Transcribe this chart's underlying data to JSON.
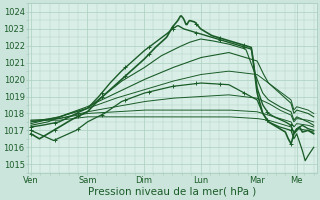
{
  "bg_color": "#cce5dc",
  "plot_bg": "#daeee8",
  "grid_color": "#aacfbf",
  "line_color": "#1a5c28",
  "ylim": [
    1014.5,
    1024.5
  ],
  "yticks": [
    1015,
    1016,
    1017,
    1018,
    1019,
    1020,
    1021,
    1022,
    1023,
    1024
  ],
  "xlabel": "Pression niveau de la mer( hPa )",
  "xlabel_fontsize": 7.5,
  "tick_fontsize": 6.0,
  "xtick_labels": [
    "Ven",
    "Sam",
    "Dim",
    "Lun",
    "Mar",
    "Me"
  ],
  "xtick_positions": [
    0.0,
    1.0,
    2.0,
    3.0,
    4.0,
    4.7
  ],
  "xlim": [
    -0.05,
    5.05
  ],
  "x_end": 5.05,
  "lines": [
    {
      "pts": [
        [
          0,
          1016.8
        ],
        [
          0.15,
          1016.5
        ],
        [
          0.3,
          1016.8
        ],
        [
          0.5,
          1017.2
        ],
        [
          0.7,
          1017.6
        ],
        [
          1.0,
          1018.1
        ],
        [
          1.2,
          1018.8
        ],
        [
          1.4,
          1019.4
        ],
        [
          1.6,
          1020.0
        ],
        [
          1.8,
          1020.6
        ],
        [
          2.0,
          1021.2
        ],
        [
          2.2,
          1021.9
        ],
        [
          2.4,
          1022.5
        ],
        [
          2.5,
          1023.1
        ],
        [
          2.6,
          1023.5
        ],
        [
          2.65,
          1023.8
        ],
        [
          2.7,
          1023.6
        ],
        [
          2.75,
          1023.2
        ],
        [
          2.8,
          1023.5
        ],
        [
          2.9,
          1023.4
        ],
        [
          3.0,
          1023.0
        ],
        [
          3.1,
          1022.8
        ],
        [
          3.2,
          1022.6
        ],
        [
          3.3,
          1022.5
        ],
        [
          3.5,
          1022.3
        ],
        [
          3.7,
          1022.1
        ],
        [
          3.9,
          1021.9
        ],
        [
          4.0,
          1019.2
        ],
        [
          4.1,
          1018.0
        ],
        [
          4.2,
          1017.5
        ],
        [
          4.3,
          1017.3
        ],
        [
          4.4,
          1017.1
        ],
        [
          4.5,
          1016.9
        ],
        [
          4.55,
          1016.5
        ],
        [
          4.6,
          1016.2
        ],
        [
          4.65,
          1016.8
        ],
        [
          4.7,
          1017.0
        ],
        [
          4.75,
          1017.2
        ],
        [
          4.8,
          1016.9
        ],
        [
          4.9,
          1017.0
        ],
        [
          5.0,
          1016.8
        ]
      ],
      "lw": 1.2,
      "marker": true
    },
    {
      "pts": [
        [
          0,
          1017.2
        ],
        [
          0.2,
          1017.3
        ],
        [
          0.5,
          1017.5
        ],
        [
          0.8,
          1018.0
        ],
        [
          1.0,
          1018.3
        ],
        [
          1.2,
          1019.0
        ],
        [
          1.4,
          1019.8
        ],
        [
          1.6,
          1020.5
        ],
        [
          1.8,
          1021.1
        ],
        [
          2.0,
          1021.7
        ],
        [
          2.2,
          1022.2
        ],
        [
          2.4,
          1022.7
        ],
        [
          2.5,
          1023.0
        ],
        [
          2.6,
          1023.2
        ],
        [
          2.7,
          1023.0
        ],
        [
          2.8,
          1022.9
        ],
        [
          3.0,
          1022.7
        ],
        [
          3.2,
          1022.5
        ],
        [
          3.5,
          1022.2
        ],
        [
          3.7,
          1022.0
        ],
        [
          3.9,
          1021.8
        ],
        [
          4.0,
          1019.5
        ],
        [
          4.1,
          1018.5
        ],
        [
          4.2,
          1018.0
        ],
        [
          4.3,
          1017.8
        ],
        [
          4.5,
          1017.5
        ],
        [
          4.6,
          1017.3
        ],
        [
          4.65,
          1016.8
        ],
        [
          4.7,
          1017.1
        ],
        [
          4.8,
          1017.3
        ],
        [
          4.9,
          1017.1
        ],
        [
          5.0,
          1017.0
        ]
      ],
      "lw": 1.0,
      "marker": true
    },
    {
      "pts": [
        [
          0,
          1017.3
        ],
        [
          0.3,
          1017.5
        ],
        [
          0.6,
          1017.9
        ],
        [
          1.0,
          1018.3
        ],
        [
          1.3,
          1019.1
        ],
        [
          1.6,
          1019.9
        ],
        [
          2.0,
          1020.7
        ],
        [
          2.3,
          1021.4
        ],
        [
          2.6,
          1021.9
        ],
        [
          2.8,
          1022.2
        ],
        [
          3.0,
          1022.4
        ],
        [
          3.2,
          1022.3
        ],
        [
          3.5,
          1022.1
        ],
        [
          3.8,
          1021.8
        ],
        [
          4.0,
          1020.0
        ],
        [
          4.1,
          1019.2
        ],
        [
          4.2,
          1018.8
        ],
        [
          4.4,
          1018.4
        ],
        [
          4.6,
          1018.1
        ],
        [
          4.65,
          1017.6
        ],
        [
          4.7,
          1017.8
        ],
        [
          4.9,
          1017.5
        ],
        [
          5.0,
          1017.3
        ]
      ],
      "lw": 0.8,
      "marker": false
    },
    {
      "pts": [
        [
          0,
          1017.4
        ],
        [
          0.5,
          1017.8
        ],
        [
          1.0,
          1018.4
        ],
        [
          1.5,
          1019.2
        ],
        [
          2.0,
          1020.0
        ],
        [
          2.5,
          1020.7
        ],
        [
          3.0,
          1021.3
        ],
        [
          3.5,
          1021.6
        ],
        [
          4.0,
          1021.1
        ],
        [
          4.1,
          1020.4
        ],
        [
          4.2,
          1019.8
        ],
        [
          4.4,
          1019.2
        ],
        [
          4.6,
          1018.6
        ],
        [
          4.65,
          1018.0
        ],
        [
          4.7,
          1018.2
        ],
        [
          4.9,
          1018.0
        ],
        [
          5.0,
          1017.8
        ]
      ],
      "lw": 0.8,
      "marker": false
    },
    {
      "pts": [
        [
          0,
          1017.5
        ],
        [
          0.5,
          1017.8
        ],
        [
          1.0,
          1018.3
        ],
        [
          1.5,
          1018.9
        ],
        [
          2.0,
          1019.4
        ],
        [
          2.5,
          1019.9
        ],
        [
          3.0,
          1020.3
        ],
        [
          3.5,
          1020.5
        ],
        [
          4.0,
          1020.3
        ],
        [
          4.2,
          1019.8
        ],
        [
          4.4,
          1019.3
        ],
        [
          4.6,
          1018.8
        ],
        [
          4.65,
          1018.2
        ],
        [
          4.7,
          1018.4
        ],
        [
          4.9,
          1018.2
        ],
        [
          5.0,
          1018.0
        ]
      ],
      "lw": 0.7,
      "marker": false
    },
    {
      "pts": [
        [
          0,
          1017.5
        ],
        [
          0.5,
          1017.7
        ],
        [
          1.0,
          1018.1
        ],
        [
          1.5,
          1018.4
        ],
        [
          2.0,
          1018.7
        ],
        [
          2.5,
          1018.9
        ],
        [
          3.0,
          1019.0
        ],
        [
          3.5,
          1019.1
        ],
        [
          4.0,
          1018.9
        ],
        [
          4.2,
          1018.6
        ],
        [
          4.4,
          1018.2
        ],
        [
          4.6,
          1017.9
        ],
        [
          4.65,
          1017.5
        ],
        [
          4.7,
          1017.7
        ],
        [
          4.9,
          1017.6
        ],
        [
          5.0,
          1017.5
        ]
      ],
      "lw": 0.7,
      "marker": false
    },
    {
      "pts": [
        [
          0,
          1017.6
        ],
        [
          0.5,
          1017.7
        ],
        [
          1.0,
          1018.0
        ],
        [
          1.5,
          1018.1
        ],
        [
          2.0,
          1018.2
        ],
        [
          2.5,
          1018.2
        ],
        [
          3.0,
          1018.2
        ],
        [
          3.5,
          1018.2
        ],
        [
          4.0,
          1018.1
        ],
        [
          4.2,
          1017.9
        ],
        [
          4.4,
          1017.7
        ],
        [
          4.6,
          1017.5
        ],
        [
          4.65,
          1017.2
        ],
        [
          4.7,
          1017.4
        ],
        [
          4.9,
          1017.3
        ],
        [
          5.0,
          1017.2
        ]
      ],
      "lw": 0.7,
      "marker": false
    },
    {
      "pts": [
        [
          0,
          1017.6
        ],
        [
          0.5,
          1017.6
        ],
        [
          1.0,
          1017.8
        ],
        [
          1.5,
          1017.8
        ],
        [
          2.0,
          1017.8
        ],
        [
          2.5,
          1017.8
        ],
        [
          3.0,
          1017.8
        ],
        [
          3.5,
          1017.8
        ],
        [
          4.0,
          1017.7
        ],
        [
          4.2,
          1017.6
        ],
        [
          4.4,
          1017.4
        ],
        [
          4.6,
          1017.2
        ],
        [
          4.65,
          1016.9
        ],
        [
          4.7,
          1017.1
        ],
        [
          4.9,
          1017.0
        ],
        [
          5.0,
          1016.9
        ]
      ],
      "lw": 0.7,
      "marker": false
    },
    {
      "pts": [
        [
          0,
          1017.0
        ],
        [
          0.2,
          1016.7
        ],
        [
          0.4,
          1016.4
        ],
        [
          0.6,
          1016.7
        ],
        [
          0.8,
          1017.0
        ],
        [
          1.0,
          1017.5
        ],
        [
          1.3,
          1018.0
        ],
        [
          1.6,
          1018.7
        ],
        [
          2.0,
          1019.2
        ],
        [
          2.5,
          1019.6
        ],
        [
          3.0,
          1019.8
        ],
        [
          3.5,
          1019.7
        ],
        [
          4.0,
          1018.8
        ],
        [
          4.1,
          1018.0
        ],
        [
          4.2,
          1017.5
        ],
        [
          4.4,
          1017.2
        ],
        [
          4.6,
          1017.0
        ],
        [
          4.65,
          1016.5
        ],
        [
          4.7,
          1016.8
        ],
        [
          4.8,
          1015.8
        ],
        [
          4.85,
          1015.2
        ],
        [
          4.9,
          1015.5
        ],
        [
          5.0,
          1016.0
        ]
      ],
      "lw": 0.9,
      "marker": true
    }
  ]
}
